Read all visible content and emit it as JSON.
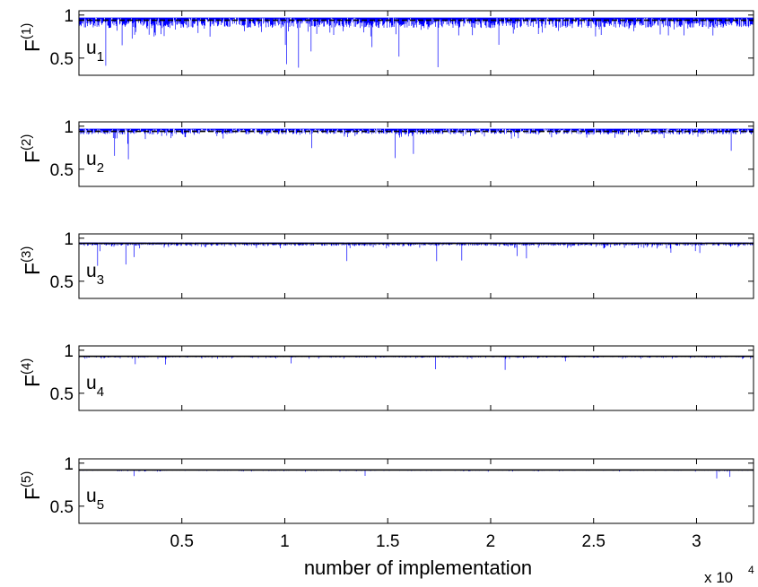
{
  "figure": {
    "xlabel": "number of implementation",
    "x_exponent_base": "x 10",
    "x_exponent_power": "4"
  },
  "chart_data": [
    {
      "type": "line",
      "ylabel_base": "F",
      "ylabel_sup": "(1)",
      "annotation_base": "u",
      "annotation_sub": "1",
      "ylim": [
        0.3,
        1.05
      ],
      "yticks": [
        0.5,
        1
      ],
      "ytick_labels": [
        "0.5",
        "1"
      ],
      "xlim": [
        1,
        32768
      ],
      "xticks": [
        5000,
        10000,
        15000,
        20000,
        25000,
        30000
      ],
      "series_color": "#0000ff",
      "reference_line": {
        "value": 0.94,
        "style": "dashed",
        "color": "#000000"
      },
      "fidelity_band": {
        "upper": 0.97,
        "typical_low": 0.75,
        "min": 0.38
      }
    },
    {
      "type": "line",
      "ylabel_base": "F",
      "ylabel_sup": "(2)",
      "annotation_base": "u",
      "annotation_sub": "2",
      "ylim": [
        0.3,
        1.05
      ],
      "yticks": [
        0.5,
        1
      ],
      "ytick_labels": [
        "0.5",
        "1"
      ],
      "xlim": [
        1,
        32768
      ],
      "xticks": [
        5000,
        10000,
        15000,
        20000,
        25000,
        30000
      ],
      "series_color": "#0000ff",
      "reference_line": {
        "value": 0.94,
        "style": "dashed",
        "color": "#000000"
      },
      "fidelity_band": {
        "upper": 0.97,
        "typical_low": 0.85,
        "min": 0.52
      }
    },
    {
      "type": "line",
      "ylabel_base": "F",
      "ylabel_sup": "(3)",
      "annotation_base": "u",
      "annotation_sub": "3",
      "ylim": [
        0.3,
        1.05
      ],
      "yticks": [
        0.5,
        1
      ],
      "ytick_labels": [
        "0.5",
        "1"
      ],
      "xlim": [
        1,
        32768
      ],
      "xticks": [
        5000,
        10000,
        15000,
        20000,
        25000,
        30000
      ],
      "series_color": "#0000ff",
      "reference_line": {
        "value": 0.94,
        "style": "solid",
        "color": "#000000"
      },
      "fidelity_band": {
        "upper": 0.95,
        "typical_low": 0.88,
        "min": 0.62
      }
    },
    {
      "type": "line",
      "ylabel_base": "F",
      "ylabel_sup": "(4)",
      "annotation_base": "u",
      "annotation_sub": "4",
      "ylim": [
        0.3,
        1.05
      ],
      "yticks": [
        0.5,
        1
      ],
      "ytick_labels": [
        "0.5",
        "1"
      ],
      "xlim": [
        1,
        32768
      ],
      "xticks": [
        5000,
        10000,
        15000,
        20000,
        25000,
        30000
      ],
      "series_color": "#0000ff",
      "reference_line": {
        "value": 0.93,
        "style": "solid",
        "color": "#000000"
      },
      "fidelity_band": {
        "upper": 0.935,
        "typical_low": 0.9,
        "min": 0.74
      }
    },
    {
      "type": "line",
      "ylabel_base": "F",
      "ylabel_sup": "(5)",
      "annotation_base": "u",
      "annotation_sub": "5",
      "ylim": [
        0.3,
        1.05
      ],
      "yticks": [
        0.5,
        1
      ],
      "ytick_labels": [
        "0.5",
        "1"
      ],
      "xlim": [
        1,
        32768
      ],
      "xticks": [
        5000,
        10000,
        15000,
        20000,
        25000,
        30000
      ],
      "xtick_labels": [
        "0.5",
        "1",
        "1.5",
        "2",
        "2.5",
        "3"
      ],
      "series_color": "#0000ff",
      "reference_line": {
        "value": 0.92,
        "style": "solid",
        "color": "#000000"
      },
      "fidelity_band": {
        "upper": 0.925,
        "typical_low": 0.9,
        "min": 0.76
      }
    }
  ]
}
